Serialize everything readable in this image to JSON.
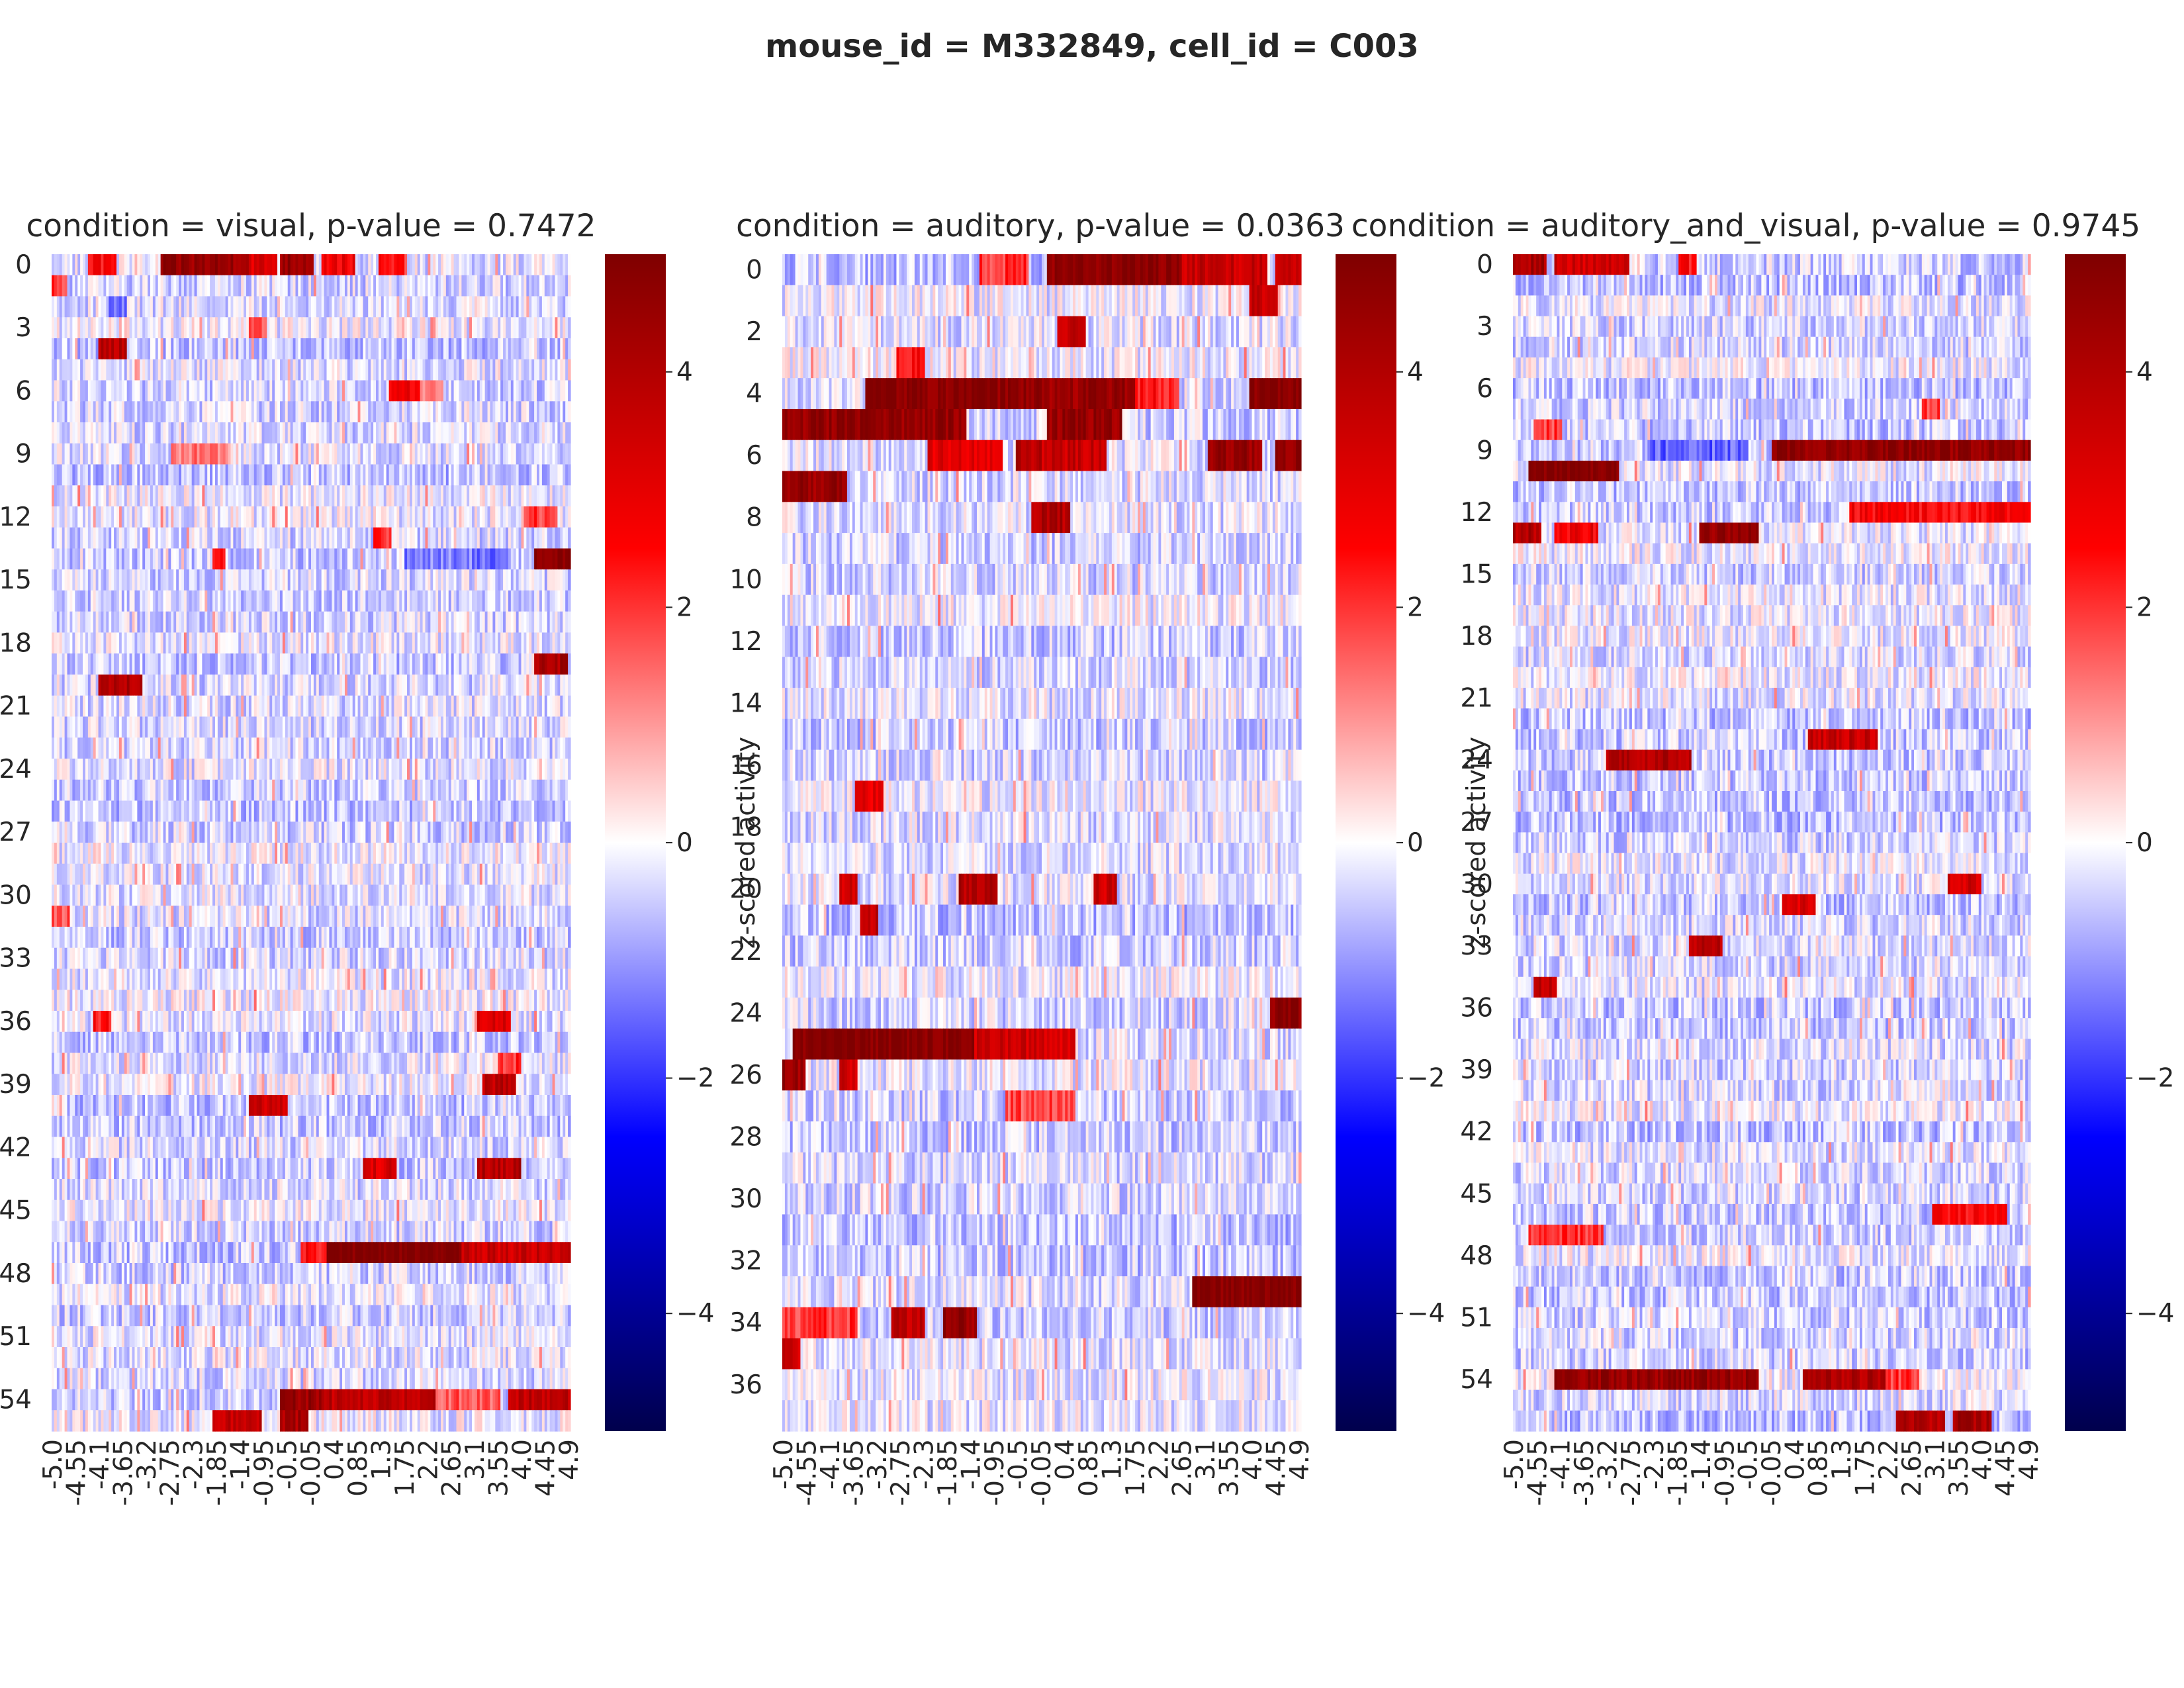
{
  "figure_title": "mouse_id = M332849, cell_id = C003",
  "colors": {
    "cmap": "seismic",
    "cmap_stops": [
      "#00004c",
      "#0000ff",
      "#ffffff",
      "#ff0000",
      "#7f0000"
    ],
    "text": "#262626"
  },
  "chart_data": [
    {
      "type": "heatmap",
      "title": "condition = visual, p-value = 0.7472",
      "n_rows": 56,
      "y_tick_labels": [
        "0",
        "3",
        "6",
        "9",
        "12",
        "15",
        "18",
        "21",
        "24",
        "27",
        "30",
        "33",
        "36",
        "39",
        "42",
        "45",
        "48",
        "51",
        "54"
      ],
      "x_tick_labels": [
        "-5.0",
        "-4.55",
        "-4.1",
        "-3.65",
        "-3.2",
        "-2.75",
        "-2.3",
        "-1.85",
        "-1.4",
        "-0.95",
        "-0.5",
        "-0.05",
        "0.4",
        "0.85",
        "1.3",
        "1.75",
        "2.2",
        "2.65",
        "3.1",
        "3.55",
        "4.0",
        "4.45",
        "4.9"
      ],
      "x_range": [
        -5.0,
        4.95
      ],
      "colorbar": {
        "label": "",
        "ticks": [
          "4",
          "2",
          "0",
          "−2",
          "−4"
        ],
        "vmin": -5,
        "vmax": 5
      },
      "zlim": [
        -5,
        5
      ],
      "bands": [
        {
          "row": 0,
          "x0": -4.3,
          "x1": -3.8,
          "v": 2.5
        },
        {
          "row": 0,
          "x0": -2.9,
          "x1": -1.2,
          "v": 4.5
        },
        {
          "row": 0,
          "x0": -1.2,
          "x1": -0.7,
          "v": 3.2
        },
        {
          "row": 0,
          "x0": -0.6,
          "x1": 0.0,
          "v": 4.5
        },
        {
          "row": 0,
          "x0": 0.2,
          "x1": 0.8,
          "v": 2.8
        },
        {
          "row": 0,
          "x0": 1.3,
          "x1": 1.8,
          "v": 2.2
        },
        {
          "row": 1,
          "x0": -5.0,
          "x1": -4.75,
          "v": 2.0
        },
        {
          "row": 2,
          "x0": -3.9,
          "x1": -3.6,
          "v": -1.2
        },
        {
          "row": 3,
          "x0": -1.2,
          "x1": -0.9,
          "v": 1.6
        },
        {
          "row": 4,
          "x0": -4.1,
          "x1": -3.6,
          "v": 3.8
        },
        {
          "row": 6,
          "x0": 1.5,
          "x1": 2.1,
          "v": 2.8
        },
        {
          "row": 6,
          "x0": 2.1,
          "x1": 2.5,
          "v": 1.4
        },
        {
          "row": 9,
          "x0": -2.7,
          "x1": -1.6,
          "v": 1.3
        },
        {
          "row": 12,
          "x0": 4.1,
          "x1": 4.7,
          "v": 2.0
        },
        {
          "row": 13,
          "x0": 1.2,
          "x1": 1.5,
          "v": 2.2
        },
        {
          "row": 14,
          "x0": -1.9,
          "x1": -1.7,
          "v": 2.5
        },
        {
          "row": 14,
          "x0": 1.8,
          "x1": 3.8,
          "v": -1.3
        },
        {
          "row": 14,
          "x0": 4.3,
          "x1": 4.95,
          "v": 5.0
        },
        {
          "row": 19,
          "x0": 4.3,
          "x1": 4.9,
          "v": 4.2
        },
        {
          "row": 20,
          "x0": -4.1,
          "x1": -3.3,
          "v": 4.0
        },
        {
          "row": 31,
          "x0": -5.0,
          "x1": -4.7,
          "v": 1.6
        },
        {
          "row": 36,
          "x0": -4.2,
          "x1": -3.9,
          "v": 2.4
        },
        {
          "row": 36,
          "x0": 3.2,
          "x1": 3.8,
          "v": 3.2
        },
        {
          "row": 38,
          "x0": 3.6,
          "x1": 4.0,
          "v": 2.0
        },
        {
          "row": 39,
          "x0": 3.3,
          "x1": 3.9,
          "v": 3.8
        },
        {
          "row": 40,
          "x0": -1.2,
          "x1": -0.5,
          "v": 3.5
        },
        {
          "row": 43,
          "x0": 1.0,
          "x1": 1.6,
          "v": 3.2
        },
        {
          "row": 43,
          "x0": 3.2,
          "x1": 4.0,
          "v": 4.0
        },
        {
          "row": 47,
          "x0": -0.2,
          "x1": 0.3,
          "v": 2.5
        },
        {
          "row": 47,
          "x0": 0.3,
          "x1": 2.9,
          "v": 5.0
        },
        {
          "row": 47,
          "x0": 2.9,
          "x1": 4.95,
          "v": 3.5
        },
        {
          "row": 54,
          "x0": -0.6,
          "x1": 0.2,
          "v": 4.5
        },
        {
          "row": 54,
          "x0": 0.2,
          "x1": 2.4,
          "v": 3.8
        },
        {
          "row": 54,
          "x0": 2.4,
          "x1": 3.6,
          "v": 1.6
        },
        {
          "row": 54,
          "x0": 3.8,
          "x1": 4.95,
          "v": 3.8
        },
        {
          "row": 55,
          "x0": -1.9,
          "x1": -1.0,
          "v": 3.6
        },
        {
          "row": 55,
          "x0": -0.6,
          "x1": -0.1,
          "v": 4.2
        }
      ]
    },
    {
      "type": "heatmap",
      "title": "condition = auditory, p-value = 0.0363",
      "n_rows": 38,
      "y_tick_labels": [
        "0",
        "2",
        "4",
        "6",
        "8",
        "10",
        "12",
        "14",
        "16",
        "18",
        "20",
        "22",
        "24",
        "26",
        "28",
        "30",
        "32",
        "34",
        "36"
      ],
      "x_tick_labels": [
        "-5.0",
        "-4.55",
        "-4.1",
        "-3.65",
        "-3.2",
        "-2.75",
        "-2.3",
        "-1.85",
        "-1.4",
        "-0.95",
        "-0.5",
        "-0.05",
        "0.4",
        "0.85",
        "1.3",
        "1.75",
        "2.2",
        "2.65",
        "3.1",
        "3.55",
        "4.0",
        "4.45",
        "4.9"
      ],
      "x_range": [
        -5.0,
        4.95
      ],
      "colorbar": {
        "label": "z-scored activity",
        "ticks": [
          "4",
          "2",
          "0",
          "−2",
          "−4"
        ],
        "vmin": -5,
        "vmax": 5
      },
      "zlim": [
        -5,
        5
      ],
      "bands": [
        {
          "row": 0,
          "x0": -1.2,
          "x1": -0.3,
          "v": 2.0
        },
        {
          "row": 0,
          "x0": 0.1,
          "x1": 2.7,
          "v": 4.8
        },
        {
          "row": 0,
          "x0": 2.7,
          "x1": 4.3,
          "v": 3.6
        },
        {
          "row": 0,
          "x0": 4.5,
          "x1": 4.95,
          "v": 3.8
        },
        {
          "row": 1,
          "x0": 4.0,
          "x1": 4.5,
          "v": 3.5
        },
        {
          "row": 2,
          "x0": 0.3,
          "x1": 0.8,
          "v": 3.8
        },
        {
          "row": 3,
          "x0": -2.8,
          "x1": -2.3,
          "v": 2.6
        },
        {
          "row": 4,
          "x0": -3.4,
          "x1": 0.0,
          "v": 4.8
        },
        {
          "row": 4,
          "x0": 0.0,
          "x1": 1.8,
          "v": 4.5
        },
        {
          "row": 4,
          "x0": 1.8,
          "x1": 2.6,
          "v": 2.4
        },
        {
          "row": 4,
          "x0": 4.0,
          "x1": 4.95,
          "v": 4.9
        },
        {
          "row": 5,
          "x0": -5.0,
          "x1": -1.5,
          "v": 4.6
        },
        {
          "row": 5,
          "x0": 0.1,
          "x1": 1.5,
          "v": 4.5
        },
        {
          "row": 6,
          "x0": -2.2,
          "x1": -0.8,
          "v": 3.0
        },
        {
          "row": 6,
          "x0": -0.5,
          "x1": 0.0,
          "v": 4.0
        },
        {
          "row": 6,
          "x0": 0.0,
          "x1": 1.2,
          "v": 3.6
        },
        {
          "row": 6,
          "x0": 3.2,
          "x1": 4.2,
          "v": 4.5
        },
        {
          "row": 6,
          "x0": 4.5,
          "x1": 4.95,
          "v": 4.6
        },
        {
          "row": 7,
          "x0": -5.0,
          "x1": -3.8,
          "v": 4.5
        },
        {
          "row": 8,
          "x0": -0.2,
          "x1": 0.5,
          "v": 4.0
        },
        {
          "row": 17,
          "x0": -3.6,
          "x1": -3.1,
          "v": 3.0
        },
        {
          "row": 20,
          "x0": -3.9,
          "x1": -3.6,
          "v": 3.5
        },
        {
          "row": 20,
          "x0": -1.6,
          "x1": -0.9,
          "v": 4.0
        },
        {
          "row": 20,
          "x0": 1.0,
          "x1": 1.4,
          "v": 3.5
        },
        {
          "row": 21,
          "x0": -3.5,
          "x1": -3.2,
          "v": 3.8
        },
        {
          "row": 24,
          "x0": 4.4,
          "x1": 4.95,
          "v": 4.8
        },
        {
          "row": 25,
          "x0": -4.8,
          "x1": -1.3,
          "v": 5.0
        },
        {
          "row": 25,
          "x0": -1.3,
          "x1": 0.2,
          "v": 3.4
        },
        {
          "row": 25,
          "x0": 0.2,
          "x1": 0.6,
          "v": 3.0
        },
        {
          "row": 26,
          "x0": -5.0,
          "x1": -4.6,
          "v": 4.5
        },
        {
          "row": 26,
          "x0": -3.9,
          "x1": -3.6,
          "v": 3.5
        },
        {
          "row": 27,
          "x0": -0.7,
          "x1": 0.6,
          "v": 1.8
        },
        {
          "row": 33,
          "x0": 2.9,
          "x1": 4.95,
          "v": 5.0
        },
        {
          "row": 34,
          "x0": -5.0,
          "x1": -3.6,
          "v": 2.0
        },
        {
          "row": 34,
          "x0": -2.9,
          "x1": -2.3,
          "v": 3.8
        },
        {
          "row": 34,
          "x0": -1.9,
          "x1": -1.3,
          "v": 4.6
        },
        {
          "row": 35,
          "x0": -5.0,
          "x1": -4.7,
          "v": 3.5
        }
      ]
    },
    {
      "type": "heatmap",
      "title": "condition = auditory_and_visual, p-value = 0.9745",
      "n_rows": 57,
      "y_tick_labels": [
        "0",
        "3",
        "6",
        "9",
        "12",
        "15",
        "18",
        "21",
        "24",
        "27",
        "30",
        "33",
        "36",
        "39",
        "42",
        "45",
        "48",
        "51",
        "54"
      ],
      "x_tick_labels": [
        "-5.0",
        "-4.55",
        "-4.1",
        "-3.65",
        "-3.2",
        "-2.75",
        "-2.3",
        "-1.85",
        "-1.4",
        "-0.95",
        "-0.5",
        "-0.05",
        "0.4",
        "0.85",
        "1.3",
        "1.75",
        "2.2",
        "2.65",
        "3.1",
        "3.55",
        "4.0",
        "4.45",
        "4.9"
      ],
      "x_range": [
        -5.0,
        4.95
      ],
      "colorbar": {
        "label": "z-scored activity",
        "ticks": [
          "4",
          "2",
          "0",
          "−2",
          "−4"
        ],
        "vmin": -5,
        "vmax": 5
      },
      "zlim": [
        -5,
        5
      ],
      "bands": [
        {
          "row": 0,
          "x0": -5.0,
          "x1": -4.4,
          "v": 4.2
        },
        {
          "row": 0,
          "x0": -4.2,
          "x1": -2.8,
          "v": 3.4
        },
        {
          "row": 0,
          "x0": -1.8,
          "x1": -1.5,
          "v": 2.4
        },
        {
          "row": 7,
          "x0": 2.9,
          "x1": 3.2,
          "v": 2.0
        },
        {
          "row": 8,
          "x0": -4.6,
          "x1": -4.1,
          "v": 2.0
        },
        {
          "row": 9,
          "x0": 0.0,
          "x1": 4.95,
          "v": 4.6
        },
        {
          "row": 9,
          "x0": -2.4,
          "x1": -0.5,
          "v": -1.5
        },
        {
          "row": 10,
          "x0": -4.7,
          "x1": -3.0,
          "v": 5.0
        },
        {
          "row": 12,
          "x0": 1.5,
          "x1": 4.95,
          "v": 2.6
        },
        {
          "row": 13,
          "x0": -5.0,
          "x1": -4.5,
          "v": 4.0
        },
        {
          "row": 13,
          "x0": -4.2,
          "x1": -3.4,
          "v": 2.8
        },
        {
          "row": 13,
          "x0": -1.4,
          "x1": -0.3,
          "v": 4.5
        },
        {
          "row": 23,
          "x0": 0.7,
          "x1": 2.0,
          "v": 3.6
        },
        {
          "row": 24,
          "x0": -3.2,
          "x1": -1.6,
          "v": 4.0
        },
        {
          "row": 30,
          "x0": 3.4,
          "x1": 4.0,
          "v": 3.4
        },
        {
          "row": 31,
          "x0": 0.2,
          "x1": 0.8,
          "v": 3.2
        },
        {
          "row": 33,
          "x0": -1.6,
          "x1": -1.0,
          "v": 3.8
        },
        {
          "row": 35,
          "x0": -4.6,
          "x1": -4.2,
          "v": 3.8
        },
        {
          "row": 46,
          "x0": 3.1,
          "x1": 4.5,
          "v": 2.6
        },
        {
          "row": 47,
          "x0": -4.7,
          "x1": -3.3,
          "v": 2.0
        },
        {
          "row": 54,
          "x0": -4.2,
          "x1": -0.3,
          "v": 4.5
        },
        {
          "row": 54,
          "x0": 0.6,
          "x1": 2.2,
          "v": 4.0
        },
        {
          "row": 54,
          "x0": 2.2,
          "x1": 2.8,
          "v": 2.0
        },
        {
          "row": 56,
          "x0": 2.4,
          "x1": 3.3,
          "v": 4.0
        },
        {
          "row": 56,
          "x0": 3.5,
          "x1": 4.2,
          "v": 4.2
        }
      ]
    }
  ]
}
